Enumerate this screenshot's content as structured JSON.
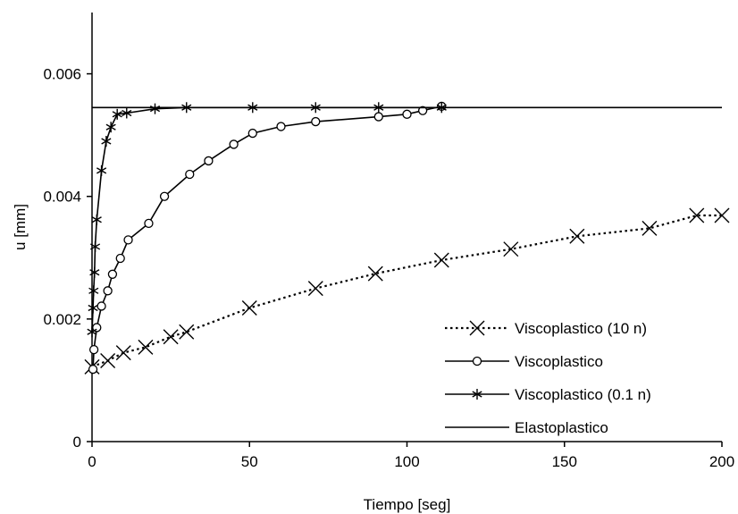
{
  "chart_data": {
    "type": "line",
    "title": "",
    "xlabel": "Tiempo [seg]",
    "ylabel": "u [mm]",
    "xlim": [
      0,
      200
    ],
    "ylim": [
      0,
      0.007
    ],
    "x_ticks": [
      "0",
      "50",
      "100",
      "150",
      "200"
    ],
    "y_ticks": [
      "0",
      "0.002",
      "0.004",
      "0.006"
    ],
    "x_tick_values": [
      0,
      50,
      100,
      150,
      200
    ],
    "y_tick_values": [
      0,
      0.002,
      0.004,
      0.006
    ],
    "grid": false,
    "legend_position": "bottom-right",
    "series": [
      {
        "name": "Viscoplastico (10 n)",
        "marker": "x",
        "line": "dotted",
        "color": "#000000",
        "points": [
          [
            0,
            0.00122
          ],
          [
            5,
            0.00132
          ],
          [
            10,
            0.00145
          ],
          [
            17,
            0.00154
          ],
          [
            25,
            0.00171
          ],
          [
            30,
            0.00179
          ],
          [
            50,
            0.00218
          ],
          [
            71,
            0.0025
          ],
          [
            90,
            0.00274
          ],
          [
            111,
            0.00296
          ],
          [
            133,
            0.00314
          ],
          [
            154,
            0.00335
          ],
          [
            177,
            0.00348
          ],
          [
            192,
            0.00369
          ],
          [
            200,
            0.00369
          ]
        ]
      },
      {
        "name": "Viscoplastico",
        "marker": "circle",
        "line": "solid",
        "color": "#000000",
        "points": [
          [
            0.3,
            0.00118
          ],
          [
            0.6,
            0.0015
          ],
          [
            1.5,
            0.00186
          ],
          [
            3,
            0.00221
          ],
          [
            5,
            0.00246
          ],
          [
            6.5,
            0.00273
          ],
          [
            9,
            0.00299
          ],
          [
            11.5,
            0.00329
          ],
          [
            18,
            0.00356
          ],
          [
            23,
            0.004
          ],
          [
            31,
            0.00436
          ],
          [
            37,
            0.00458
          ],
          [
            45,
            0.00485
          ],
          [
            51,
            0.00503
          ],
          [
            60,
            0.00514
          ],
          [
            71,
            0.00522
          ],
          [
            91,
            0.0053
          ],
          [
            100,
            0.00534
          ],
          [
            105,
            0.0054
          ],
          [
            111,
            0.00547
          ]
        ]
      },
      {
        "name": "Viscoplastico (0.1 n)",
        "marker": "asterisk",
        "line": "solid",
        "color": "#000000",
        "points": [
          [
            0,
            0.00179
          ],
          [
            0.3,
            0.00218
          ],
          [
            0.5,
            0.00246
          ],
          [
            0.8,
            0.00276
          ],
          [
            1,
            0.00318
          ],
          [
            1.5,
            0.00362
          ],
          [
            3,
            0.00442
          ],
          [
            4.5,
            0.0049
          ],
          [
            6,
            0.00513
          ],
          [
            8,
            0.00534
          ],
          [
            11,
            0.00536
          ],
          [
            20,
            0.00543
          ],
          [
            30,
            0.00545
          ],
          [
            51,
            0.00545
          ],
          [
            71,
            0.00545
          ],
          [
            91,
            0.00545
          ],
          [
            111,
            0.00545
          ]
        ]
      },
      {
        "name": "Elastoplastico",
        "marker": "none",
        "line": "solid",
        "color": "#000000",
        "points": [
          [
            0,
            0.00545
          ],
          [
            200,
            0.00545
          ]
        ]
      }
    ]
  }
}
